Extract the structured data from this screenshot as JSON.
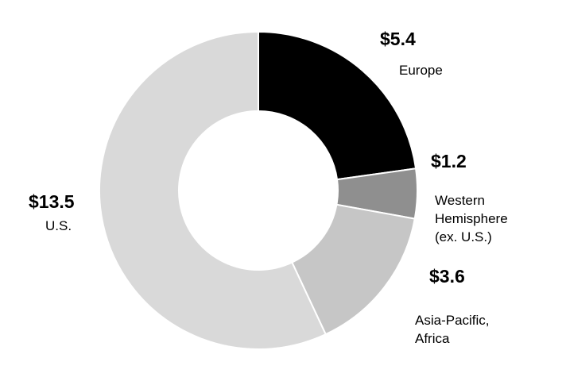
{
  "chart_data": {
    "type": "donut",
    "categories": [
      "Europe",
      "Western Hemisphere (ex. U.S.)",
      "Asia-Pacific, Africa",
      "U.S."
    ],
    "values": [
      5.4,
      1.2,
      3.6,
      13.5
    ],
    "value_labels": [
      "$5.4",
      "$1.2",
      "$3.6",
      "$13.5"
    ],
    "colors": [
      "#000000",
      "#8f8f8f",
      "#c6c6c6",
      "#d9d9d9"
    ]
  }
}
